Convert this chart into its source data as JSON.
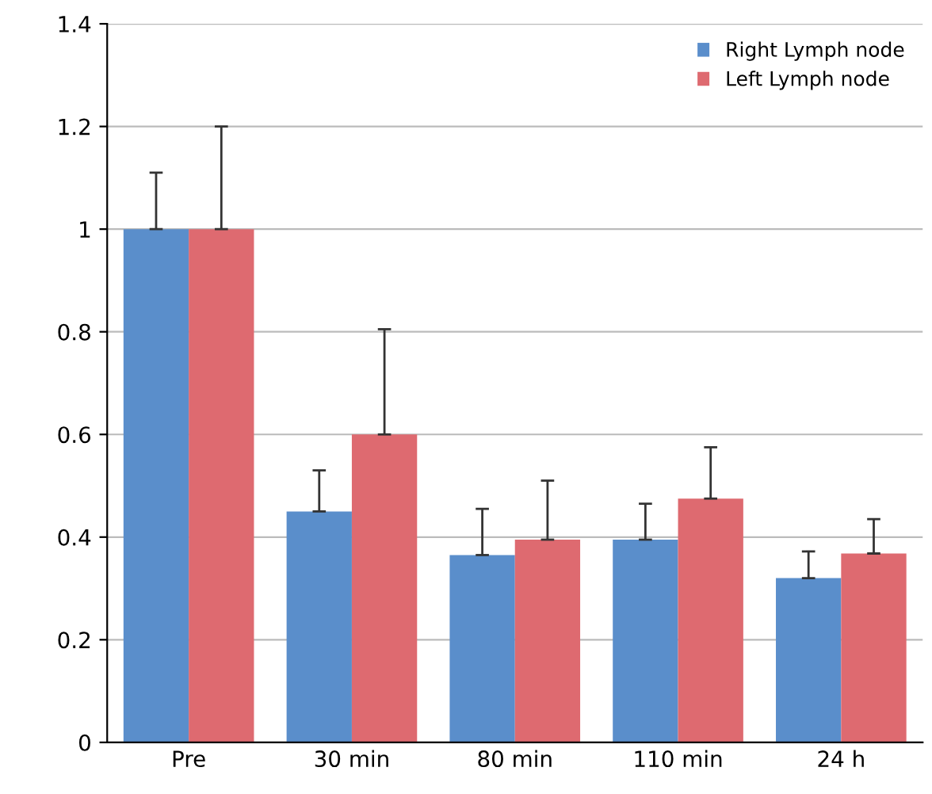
{
  "chart_data": {
    "type": "bar",
    "categories": [
      "Pre",
      "30 min",
      "80 min",
      "110 min",
      "24 h"
    ],
    "series": [
      {
        "name": "Right Lymph node",
        "color": "#5a8ecb",
        "values": [
          1.0,
          0.45,
          0.365,
          0.395,
          0.32
        ],
        "errors": [
          [
            1.0,
            1.11
          ],
          [
            0.45,
            0.53
          ],
          [
            0.365,
            0.455
          ],
          [
            0.395,
            0.465
          ],
          [
            0.32,
            0.372
          ]
        ]
      },
      {
        "name": "Left Lymph node",
        "color": "#de6a70",
        "values": [
          1.0,
          0.6,
          0.395,
          0.475,
          0.368
        ],
        "errors": [
          [
            1.0,
            1.2
          ],
          [
            0.6,
            0.805
          ],
          [
            0.395,
            0.51
          ],
          [
            0.475,
            0.575
          ],
          [
            0.368,
            0.435
          ]
        ]
      }
    ],
    "ylim": [
      0,
      1.4
    ],
    "yticks": [
      0,
      0.2,
      0.4,
      0.6,
      0.8,
      1,
      1.2,
      1.4
    ],
    "grid": "y",
    "legend": "top right"
  }
}
